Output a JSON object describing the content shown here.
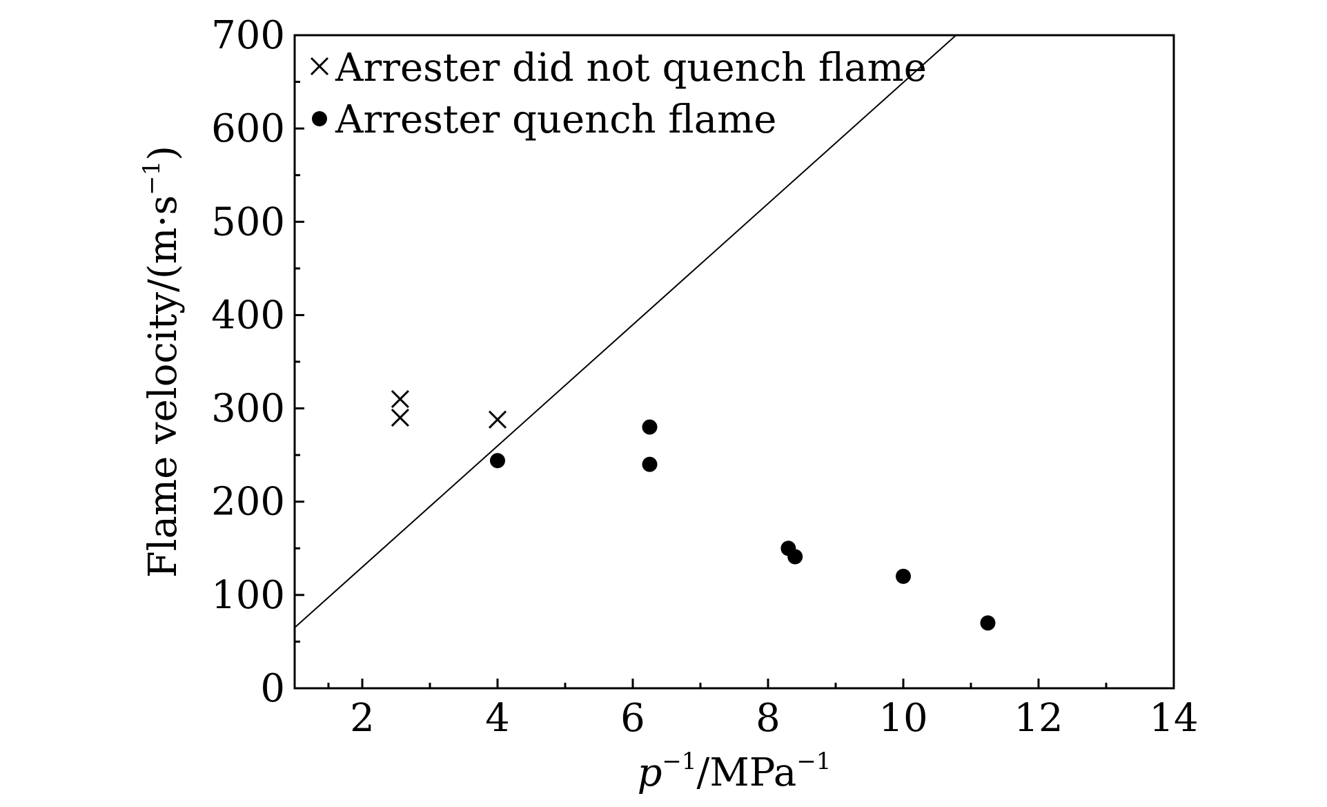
{
  "chart_data": {
    "type": "scatter",
    "title": "",
    "xlabel": {
      "base": "p",
      "sup1": "−1",
      "mid": "/MPa",
      "sup2": "−1"
    },
    "ylabel": {
      "main": "Flame velocity/(m·s",
      "sup": "−1",
      "close": ")"
    },
    "xlim": [
      1,
      14
    ],
    "ylim": [
      0,
      700
    ],
    "xticks": [
      2,
      4,
      6,
      8,
      10,
      12,
      14
    ],
    "xtick_labels": [
      "2",
      "4",
      "6",
      "8",
      "10",
      "12",
      "14"
    ],
    "yticks": [
      0,
      100,
      200,
      300,
      400,
      500,
      600,
      700
    ],
    "ytick_labels": [
      "0",
      "100",
      "200",
      "300",
      "400",
      "500",
      "600",
      "700"
    ],
    "grid": false,
    "legend_position": "top-left",
    "series": [
      {
        "name": "Arrester did not quench flame",
        "marker": "x",
        "points": [
          [
            2.56,
            310
          ],
          [
            2.56,
            290
          ],
          [
            4.0,
            288
          ]
        ]
      },
      {
        "name": "Arrester quench flame",
        "marker": "filled-circle",
        "points": [
          [
            4.0,
            244
          ],
          [
            6.25,
            280
          ],
          [
            6.25,
            240
          ],
          [
            8.3,
            150
          ],
          [
            8.4,
            141
          ],
          [
            10.0,
            120
          ],
          [
            11.25,
            70
          ]
        ]
      }
    ],
    "reference_line": {
      "points": [
        [
          1,
          65
        ],
        [
          10.78,
          700
        ]
      ]
    },
    "colors": {
      "ink": "#000000",
      "background": "#ffffff"
    }
  }
}
